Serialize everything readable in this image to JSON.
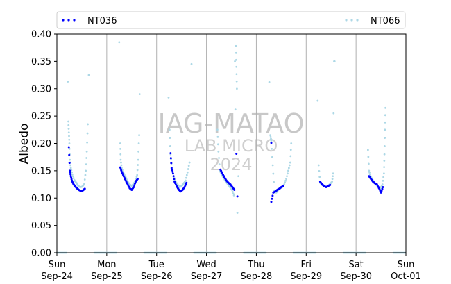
{
  "chart_data": {
    "type": "scatter",
    "ylabel": "Albedo",
    "xlabel": "",
    "ylim": [
      0,
      0.4
    ],
    "xlim": [
      "2023-09-24",
      "2023-10-01"
    ],
    "yticks": [
      "0.00",
      "0.05",
      "0.10",
      "0.15",
      "0.20",
      "0.25",
      "0.30",
      "0.35",
      "0.40"
    ],
    "xticks": [
      {
        "top": "Sun",
        "bottom": "Sep-24"
      },
      {
        "top": "Mon",
        "bottom": "Sep-25"
      },
      {
        "top": "Tue",
        "bottom": "Sep-26"
      },
      {
        "top": "Wed",
        "bottom": "Sep-27"
      },
      {
        "top": "Thu",
        "bottom": "Sep-28"
      },
      {
        "top": "Fri",
        "bottom": "Sep-29"
      },
      {
        "top": "Sat",
        "bottom": "Sep-30"
      },
      {
        "top": "Sun",
        "bottom": "Oct-01"
      }
    ],
    "grid": "vertical at day boundaries",
    "legend": {
      "placement": "top",
      "entries": [
        "NT036",
        "NT066"
      ]
    },
    "watermark": [
      "IAG-MATAO",
      "LAB MICRO",
      "2024"
    ],
    "series": [
      {
        "name": "NT036",
        "color": "#0000ff",
        "days": [
          {
            "day": 0,
            "points": [
              [
                0.24,
                0.193
              ],
              [
                0.26,
                0.15
              ],
              [
                0.28,
                0.14
              ],
              [
                0.3,
                0.132
              ],
              [
                0.33,
                0.126
              ],
              [
                0.36,
                0.122
              ],
              [
                0.4,
                0.118
              ],
              [
                0.44,
                0.115
              ],
              [
                0.48,
                0.113
              ],
              [
                0.52,
                0.114
              ],
              [
                0.56,
                0.117
              ]
            ]
          },
          {
            "day": 1,
            "points": [
              [
                0.27,
                0.156
              ],
              [
                0.3,
                0.148
              ],
              [
                0.34,
                0.14
              ],
              [
                0.38,
                0.132
              ],
              [
                0.42,
                0.125
              ],
              [
                0.46,
                0.118
              ],
              [
                0.5,
                0.115
              ],
              [
                0.54,
                0.12
              ],
              [
                0.58,
                0.13
              ],
              [
                0.62,
                0.135
              ]
            ]
          },
          {
            "day": 2,
            "points": [
              [
                0.28,
                0.182
              ],
              [
                0.3,
                0.155
              ],
              [
                0.33,
                0.145
              ],
              [
                0.36,
                0.13
              ],
              [
                0.4,
                0.122
              ],
              [
                0.44,
                0.116
              ],
              [
                0.48,
                0.112
              ],
              [
                0.52,
                0.115
              ],
              [
                0.56,
                0.12
              ],
              [
                0.6,
                0.128
              ]
            ]
          },
          {
            "day": 3,
            "points": [
              [
                0.28,
                0.152
              ],
              [
                0.32,
                0.145
              ],
              [
                0.36,
                0.138
              ],
              [
                0.4,
                0.132
              ],
              [
                0.44,
                0.128
              ],
              [
                0.48,
                0.125
              ],
              [
                0.52,
                0.12
              ],
              [
                0.56,
                0.115
              ],
              [
                0.6,
                0.181
              ],
              [
                0.62,
                0.103
              ]
            ]
          },
          {
            "day": 4,
            "points": [
              [
                0.3,
                0.201
              ],
              [
                0.3,
                0.093
              ],
              [
                0.34,
                0.11
              ],
              [
                0.38,
                0.112
              ],
              [
                0.42,
                0.115
              ],
              [
                0.46,
                0.117
              ],
              [
                0.5,
                0.12
              ],
              [
                0.54,
                0.122
              ]
            ]
          },
          {
            "day": 5,
            "points": [
              [
                0.28,
                0.13
              ],
              [
                0.32,
                0.125
              ],
              [
                0.36,
                0.122
              ],
              [
                0.4,
                0.12
              ],
              [
                0.44,
                0.122
              ],
              [
                0.48,
                0.124
              ]
            ]
          },
          {
            "day": 6,
            "points": [
              [
                0.26,
                0.14
              ],
              [
                0.3,
                0.135
              ],
              [
                0.34,
                0.13
              ],
              [
                0.38,
                0.127
              ],
              [
                0.42,
                0.125
              ],
              [
                0.46,
                0.118
              ],
              [
                0.5,
                0.11
              ],
              [
                0.54,
                0.12
              ]
            ]
          }
        ]
      },
      {
        "name": "NT066",
        "color": "#add8e6",
        "days": [
          {
            "day": 0,
            "points": [
              [
                0.22,
                0.313
              ],
              [
                0.23,
                0.24
              ],
              [
                0.24,
                0.22
              ],
              [
                0.25,
                0.2
              ],
              [
                0.26,
                0.17
              ],
              [
                0.28,
                0.155
              ],
              [
                0.31,
                0.143
              ],
              [
                0.35,
                0.133
              ],
              [
                0.39,
                0.128
              ],
              [
                0.43,
                0.122
              ],
              [
                0.47,
                0.12
              ],
              [
                0.51,
                0.121
              ],
              [
                0.55,
                0.126
              ],
              [
                0.58,
                0.15
              ],
              [
                0.6,
                0.185
              ],
              [
                0.62,
                0.235
              ],
              [
                0.64,
                0.325
              ]
            ]
          },
          {
            "day": 1,
            "points": [
              [
                0.25,
                0.385
              ],
              [
                0.27,
                0.2
              ],
              [
                0.28,
                0.17
              ],
              [
                0.3,
                0.155
              ],
              [
                0.34,
                0.145
              ],
              [
                0.38,
                0.138
              ],
              [
                0.42,
                0.13
              ],
              [
                0.46,
                0.125
              ],
              [
                0.5,
                0.122
              ],
              [
                0.54,
                0.126
              ],
              [
                0.58,
                0.132
              ],
              [
                0.61,
                0.142
              ],
              [
                0.63,
                0.17
              ],
              [
                0.65,
                0.215
              ],
              [
                0.66,
                0.29
              ]
            ]
          },
          {
            "day": 2,
            "points": [
              [
                0.24,
                0.284
              ],
              [
                0.26,
                0.225
              ],
              [
                0.28,
                0.18
              ],
              [
                0.31,
                0.155
              ],
              [
                0.34,
                0.14
              ],
              [
                0.38,
                0.13
              ],
              [
                0.42,
                0.125
              ],
              [
                0.46,
                0.12
              ],
              [
                0.5,
                0.122
              ],
              [
                0.54,
                0.126
              ],
              [
                0.58,
                0.132
              ],
              [
                0.62,
                0.147
              ],
              [
                0.66,
                0.165
              ],
              [
                0.7,
                0.345
              ]
            ]
          },
          {
            "day": 3,
            "points": [
              [
                0.22,
                0.225
              ],
              [
                0.24,
                0.185
              ],
              [
                0.27,
                0.15
              ],
              [
                0.31,
                0.142
              ],
              [
                0.35,
                0.136
              ],
              [
                0.39,
                0.13
              ],
              [
                0.43,
                0.125
              ],
              [
                0.47,
                0.12
              ],
              [
                0.51,
                0.115
              ],
              [
                0.55,
                0.105
              ],
              [
                0.57,
                0.35
              ],
              [
                0.58,
                0.262
              ],
              [
                0.59,
                0.378
              ],
              [
                0.6,
                0.34
              ],
              [
                0.61,
                0.3
              ],
              [
                0.62,
                0.073
              ],
              [
                0.64,
                0.14
              ]
            ]
          },
          {
            "day": 4,
            "points": [
              [
                0.26,
                0.312
              ],
              [
                0.28,
                0.215
              ],
              [
                0.3,
                0.205
              ],
              [
                0.33,
                0.16
              ],
              [
                0.36,
                0.114
              ],
              [
                0.4,
                0.11
              ],
              [
                0.44,
                0.115
              ],
              [
                0.48,
                0.118
              ],
              [
                0.52,
                0.12
              ],
              [
                0.56,
                0.125
              ],
              [
                0.6,
                0.135
              ],
              [
                0.64,
                0.15
              ],
              [
                0.68,
                0.165
              ],
              [
                0.7,
                0.2
              ]
            ]
          },
          {
            "day": 5,
            "points": [
              [
                0.23,
                0.278
              ],
              [
                0.25,
                0.16
              ],
              [
                0.28,
                0.128
              ],
              [
                0.32,
                0.124
              ],
              [
                0.36,
                0.122
              ],
              [
                0.4,
                0.12
              ],
              [
                0.44,
                0.122
              ],
              [
                0.48,
                0.126
              ],
              [
                0.52,
                0.13
              ],
              [
                0.54,
                0.145
              ],
              [
                0.55,
                0.255
              ],
              [
                0.56,
                0.35
              ],
              [
                0.57,
                0.35
              ]
            ]
          },
          {
            "day": 6,
            "points": [
              [
                0.24,
                0.188
              ],
              [
                0.26,
                0.15
              ],
              [
                0.29,
                0.14
              ],
              [
                0.33,
                0.134
              ],
              [
                0.37,
                0.128
              ],
              [
                0.41,
                0.124
              ],
              [
                0.45,
                0.12
              ],
              [
                0.49,
                0.118
              ],
              [
                0.53,
                0.125
              ],
              [
                0.56,
                0.145
              ],
              [
                0.57,
                0.18
              ],
              [
                0.58,
                0.225
              ],
              [
                0.59,
                0.265
              ]
            ]
          }
        ]
      }
    ]
  }
}
